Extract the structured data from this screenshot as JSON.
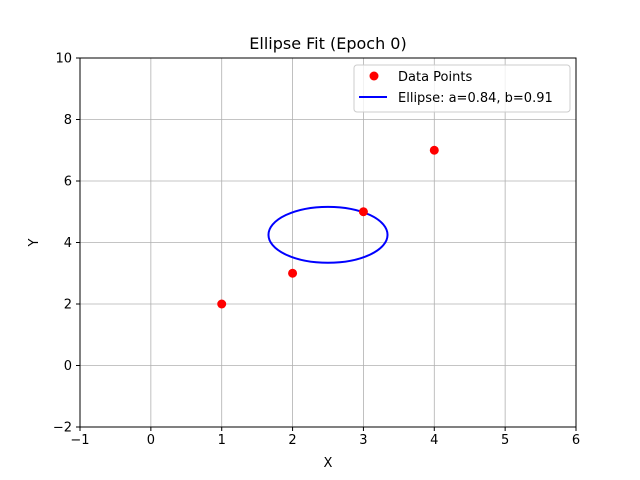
{
  "chart_data": {
    "type": "scatter",
    "title": "Ellipse Fit (Epoch 0)",
    "xlabel": "X",
    "ylabel": "Y",
    "xlim": [
      -1,
      6
    ],
    "ylim": [
      -2,
      10
    ],
    "xticks": [
      -1,
      0,
      1,
      2,
      3,
      4,
      5,
      6
    ],
    "yticks": [
      -2,
      0,
      2,
      4,
      6,
      8,
      10
    ],
    "grid": true,
    "legend_position": "top-right",
    "series": [
      {
        "name": "Data Points",
        "kind": "scatter",
        "color": "#ff0000",
        "points": [
          {
            "x": 1,
            "y": 2
          },
          {
            "x": 2,
            "y": 3
          },
          {
            "x": 3,
            "y": 5
          },
          {
            "x": 4,
            "y": 7
          }
        ]
      },
      {
        "name": "Ellipse: a=0.84, b=0.91",
        "kind": "ellipse",
        "color": "#0000ff",
        "center": {
          "x": 2.5,
          "y": 4.25
        },
        "semi_axis_x": 0.84,
        "semi_axis_y": 0.91
      }
    ]
  }
}
